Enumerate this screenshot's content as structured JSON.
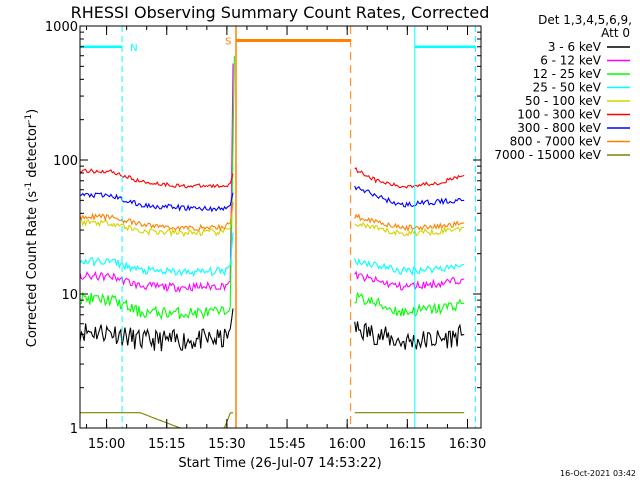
{
  "chart_data": {
    "type": "line",
    "title": "RHESSI Observing Summary Count Rates, Corrected",
    "xlabel": "Start Time (26-Jul-07 14:53:22)",
    "ylabel_parts": [
      "Corrected Count Rate (s",
      "-1",
      " detector",
      "-1",
      ")"
    ],
    "y_scale": "log",
    "ylim": [
      1,
      1000
    ],
    "y_ticks": [
      {
        "value": 1,
        "label": "1"
      },
      {
        "value": 10,
        "label": "10"
      },
      {
        "value": 100,
        "label": "100"
      },
      {
        "value": 1000,
        "label": "1000"
      }
    ],
    "x_range_minutes": [
      0,
      100
    ],
    "x_ticks": [
      {
        "minute": 6.63,
        "label": "15:00"
      },
      {
        "minute": 21.63,
        "label": "15:15"
      },
      {
        "minute": 36.63,
        "label": "15:30"
      },
      {
        "minute": 51.63,
        "label": "15:45"
      },
      {
        "minute": 66.63,
        "label": "16:00"
      },
      {
        "minute": 81.63,
        "label": "16:15"
      },
      {
        "minute": 96.63,
        "label": "16:30"
      }
    ],
    "legend_header": [
      "Det 1,3,4,5,6,9,",
      "Att 0"
    ],
    "series": [
      {
        "name": "3 - 6 keV",
        "color": "#000000",
        "before_gap": [
          [
            0,
            5.3
          ],
          [
            8,
            5.2
          ],
          [
            15,
            4.5
          ],
          [
            25,
            4.5
          ],
          [
            36,
            4.6
          ],
          [
            37.5,
            5.5
          ],
          [
            38.2,
            8
          ]
        ],
        "after_gap": [
          [
            68.5,
            5.5
          ],
          [
            74,
            5.0
          ],
          [
            80,
            4.4
          ],
          [
            90,
            4.6
          ],
          [
            96,
            5.0
          ]
        ]
      },
      {
        "name": "6 - 12 keV",
        "color": "#ff00ff",
        "before_gap": [
          [
            0,
            13.5
          ],
          [
            8,
            13.5
          ],
          [
            15,
            11.5
          ],
          [
            25,
            11.2
          ],
          [
            36,
            11.5
          ],
          [
            37.5,
            12.5
          ],
          [
            38.2,
            700
          ]
        ],
        "after_gap": [
          [
            68.5,
            13.8
          ],
          [
            74,
            12.5
          ],
          [
            80,
            11.3
          ],
          [
            90,
            12.0
          ],
          [
            96,
            13.0
          ]
        ]
      },
      {
        "name": "12 - 25 keV",
        "color": "#00ff00",
        "before_gap": [
          [
            0,
            9.3
          ],
          [
            8,
            9.0
          ],
          [
            15,
            7.3
          ],
          [
            25,
            7.2
          ],
          [
            36,
            7.3
          ],
          [
            37.5,
            8.0
          ],
          [
            38.5,
            600
          ]
        ],
        "after_gap": [
          [
            68.5,
            9.5
          ],
          [
            74,
            8.5
          ],
          [
            80,
            7.3
          ],
          [
            90,
            7.8
          ],
          [
            96,
            8.6
          ]
        ]
      },
      {
        "name": "25 - 50 keV",
        "color": "#00ffff",
        "before_gap": [
          [
            0,
            17.5
          ],
          [
            8,
            17.5
          ],
          [
            15,
            15.0
          ],
          [
            25,
            14.5
          ],
          [
            36,
            14.8
          ],
          [
            37.5,
            16.5
          ],
          [
            38.2,
            30
          ]
        ],
        "after_gap": [
          [
            68.5,
            17.8
          ],
          [
            74,
            16.5
          ],
          [
            80,
            14.8
          ],
          [
            90,
            15.6
          ],
          [
            96,
            16.6
          ]
        ]
      },
      {
        "name": "50 - 100 keV",
        "color": "#d4d400",
        "before_gap": [
          [
            0,
            34.5
          ],
          [
            8,
            34.0
          ],
          [
            15,
            29.5
          ],
          [
            25,
            28.5
          ],
          [
            36,
            29.0
          ],
          [
            37.5,
            31
          ],
          [
            38.2,
            50
          ]
        ],
        "after_gap": [
          [
            68.5,
            34
          ],
          [
            74,
            30.5
          ],
          [
            80,
            28.2
          ],
          [
            90,
            29.5
          ],
          [
            96,
            31.5
          ]
        ]
      },
      {
        "name": "100 - 300 keV",
        "color": "#ff0000",
        "before_gap": [
          [
            0,
            83
          ],
          [
            8,
            82
          ],
          [
            15,
            69
          ],
          [
            25,
            64
          ],
          [
            36,
            64
          ],
          [
            37.5,
            67
          ],
          [
            38.2,
            80
          ]
        ],
        "after_gap": [
          [
            68.5,
            86
          ],
          [
            74,
            70
          ],
          [
            80,
            63
          ],
          [
            90,
            68
          ],
          [
            96,
            77
          ]
        ]
      },
      {
        "name": "300 - 800 keV",
        "color": "#0000ff",
        "before_gap": [
          [
            0,
            55
          ],
          [
            8,
            54
          ],
          [
            15,
            46
          ],
          [
            25,
            44
          ],
          [
            36,
            43
          ],
          [
            37.5,
            46
          ],
          [
            38.2,
            58
          ]
        ],
        "after_gap": [
          [
            68.5,
            63
          ],
          [
            74,
            54
          ],
          [
            80,
            46
          ],
          [
            90,
            49
          ],
          [
            96,
            50
          ]
        ]
      },
      {
        "name": "800 - 7000 keV",
        "color": "#ff8000",
        "before_gap": [
          [
            0,
            38
          ],
          [
            8,
            37.5
          ],
          [
            15,
            33
          ],
          [
            25,
            31
          ],
          [
            36,
            31.5
          ],
          [
            37.5,
            34
          ],
          [
            38.2,
            50
          ]
        ],
        "after_gap": [
          [
            68.5,
            38
          ],
          [
            74,
            35
          ],
          [
            80,
            31
          ],
          [
            90,
            32
          ],
          [
            96,
            34
          ]
        ]
      },
      {
        "name": "7000 - 15000 keV",
        "color": "#808000",
        "before_gap": [
          [
            0,
            1.3
          ],
          [
            8,
            1.3
          ],
          [
            15,
            1.3
          ],
          [
            25,
            1.0
          ],
          [
            36,
            1.0
          ],
          [
            37.5,
            1.3
          ],
          [
            38.2,
            1.3
          ]
        ],
        "after_gap": [
          [
            68.5,
            1.3
          ],
          [
            74,
            1.3
          ],
          [
            80,
            1.3
          ],
          [
            90,
            1.3
          ],
          [
            96,
            1.3
          ]
        ]
      }
    ],
    "annotations": {
      "night_label": "N",
      "saa_label": "S",
      "night_intervals": [
        [
          0,
          10.5
        ],
        [
          83.5,
          98.6
        ]
      ],
      "saa_interval": [
        38.9,
        67.5
      ],
      "night_level": 700,
      "saa_level": 780,
      "night_color": "#00ffff",
      "saa_color": "#ff8000"
    }
  },
  "footer_timestamp": "16-Oct-2021 03:42"
}
